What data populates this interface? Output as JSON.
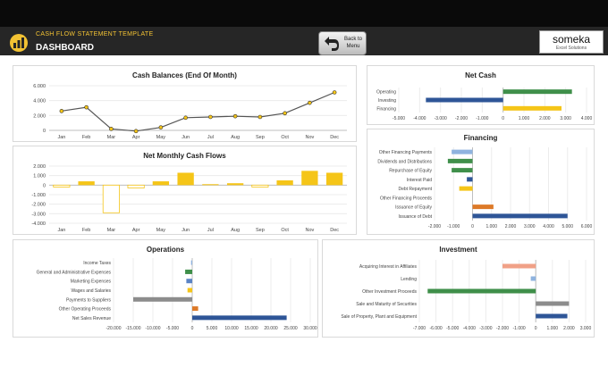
{
  "header": {
    "app_title": "CASH FLOW STATEMENT TEMPLATE",
    "page_title": "DASHBOARD",
    "back_label": "Back to Menu",
    "brand_name": "someka",
    "brand_sub": "Excel Solutions",
    "accent": "#f2c233"
  },
  "colors": {
    "gold": "#f5c518",
    "navy": "#2e5597",
    "green": "#3f8f4a",
    "orange": "#dd7a28",
    "gray": "#8c8c8c",
    "salmon": "#f0a187",
    "blue": "#5b84c4",
    "ltblue": "#8fb3df"
  },
  "chart_data": [
    {
      "id": "cash_balances",
      "type": "line",
      "title": "Cash Balances (End Of Month)",
      "categories": [
        "Jan",
        "Feb",
        "Mar",
        "Apr",
        "May",
        "Jun",
        "Jul",
        "Aug",
        "Sep",
        "Oct",
        "Nov",
        "Dec"
      ],
      "values": [
        2600,
        3100,
        200,
        -100,
        400,
        1700,
        1800,
        1900,
        1800,
        2300,
        3700,
        5100
      ],
      "ylim": [
        0,
        6000
      ],
      "yticks": [
        "6.000",
        "4.000",
        "2.000",
        "0"
      ]
    },
    {
      "id": "net_monthly",
      "type": "bar",
      "title": "Net Monthly Cash Flows",
      "categories": [
        "Jan",
        "Feb",
        "Mar",
        "Apr",
        "May",
        "Jun",
        "Jul",
        "Aug",
        "Sep",
        "Oct",
        "Nov",
        "Dec"
      ],
      "values": [
        -200,
        400,
        -2900,
        -300,
        400,
        1300,
        100,
        200,
        -200,
        500,
        1500,
        1300
      ],
      "ylim": [
        -4000,
        2000
      ],
      "yticks": [
        "2.000",
        "1.000",
        "0",
        "-1.000",
        "-2.000",
        "-3.000",
        "-4.000"
      ]
    },
    {
      "id": "net_cash",
      "type": "bar",
      "title": "Net Cash",
      "categories": [
        "Operating",
        "Investing",
        "Financing"
      ],
      "values": [
        3300,
        -3700,
        2800
      ],
      "colors": [
        "#3f8f4a",
        "#2e5597",
        "#f5c518"
      ],
      "xlim": [
        -5000,
        4000
      ],
      "xticks": [
        "-5.000",
        "-4.000",
        "-3.000",
        "-2.000",
        "-1.000",
        "0",
        "1.000",
        "2.000",
        "3.000",
        "4.000"
      ]
    },
    {
      "id": "financing",
      "type": "bar",
      "title": "Financing",
      "categories": [
        "Other Financing Payments",
        "Dividends and Distributions",
        "Repurchase of Equity",
        "Interest Paid",
        "Debt Repayment",
        "Other Financing Proceeds",
        "Issuance of Equity",
        "Issuance of Debt"
      ],
      "values": [
        -1100,
        -1300,
        -1100,
        -300,
        -700,
        0,
        1100,
        5000
      ],
      "colors": [
        "#8fb3df",
        "#3f8f4a",
        "#3f8f4a",
        "#2e5597",
        "#f5c518",
        "#8c8c8c",
        "#dd7a28",
        "#2e5597"
      ],
      "xlim": [
        -2000,
        6000
      ],
      "xticks": [
        "-2.000",
        "-1.000",
        "0",
        "1.000",
        "2.000",
        "3.000",
        "4.000",
        "5.000",
        "6.000"
      ]
    },
    {
      "id": "operations",
      "type": "bar",
      "title": "Operations",
      "categories": [
        "Income Taxes",
        "General and Administrative Expenses",
        "Marketing Expenses",
        "Wages and Salaries",
        "Payments to Suppliers",
        "Other Operating Proceeds",
        "Net Sales Revenue"
      ],
      "values": [
        -300,
        -1800,
        -1500,
        -1200,
        -15000,
        1500,
        24000
      ],
      "colors": [
        "#8fb3df",
        "#3f8f4a",
        "#5b84c4",
        "#f5c518",
        "#8c8c8c",
        "#dd7a28",
        "#2e5597"
      ],
      "xlim": [
        -20000,
        30000
      ],
      "xticks": [
        "-20.000",
        "-15.000",
        "-10.000",
        "-5.000",
        "0",
        "5.000",
        "10.000",
        "15.000",
        "20.000",
        "25.000",
        "30.000"
      ]
    },
    {
      "id": "investment",
      "type": "bar",
      "title": "Investment",
      "categories": [
        "Acquiring Interest in Affiliates",
        "Lending",
        "Other Investment Proceeds",
        "Sale and Maturity of Securities",
        "Sale of Property, Plant and Equipment"
      ],
      "values": [
        -2000,
        -300,
        -6500,
        2000,
        1900
      ],
      "colors": [
        "#f0a187",
        "#8fb3df",
        "#3f8f4a",
        "#8c8c8c",
        "#2e5597"
      ],
      "xlim": [
        -7000,
        3000
      ],
      "xticks": [
        "-7.000",
        "-6.000",
        "-5.000",
        "-4.000",
        "-3.000",
        "-2.000",
        "-1.000",
        "0",
        "1.000",
        "2.000",
        "3.000"
      ]
    }
  ]
}
